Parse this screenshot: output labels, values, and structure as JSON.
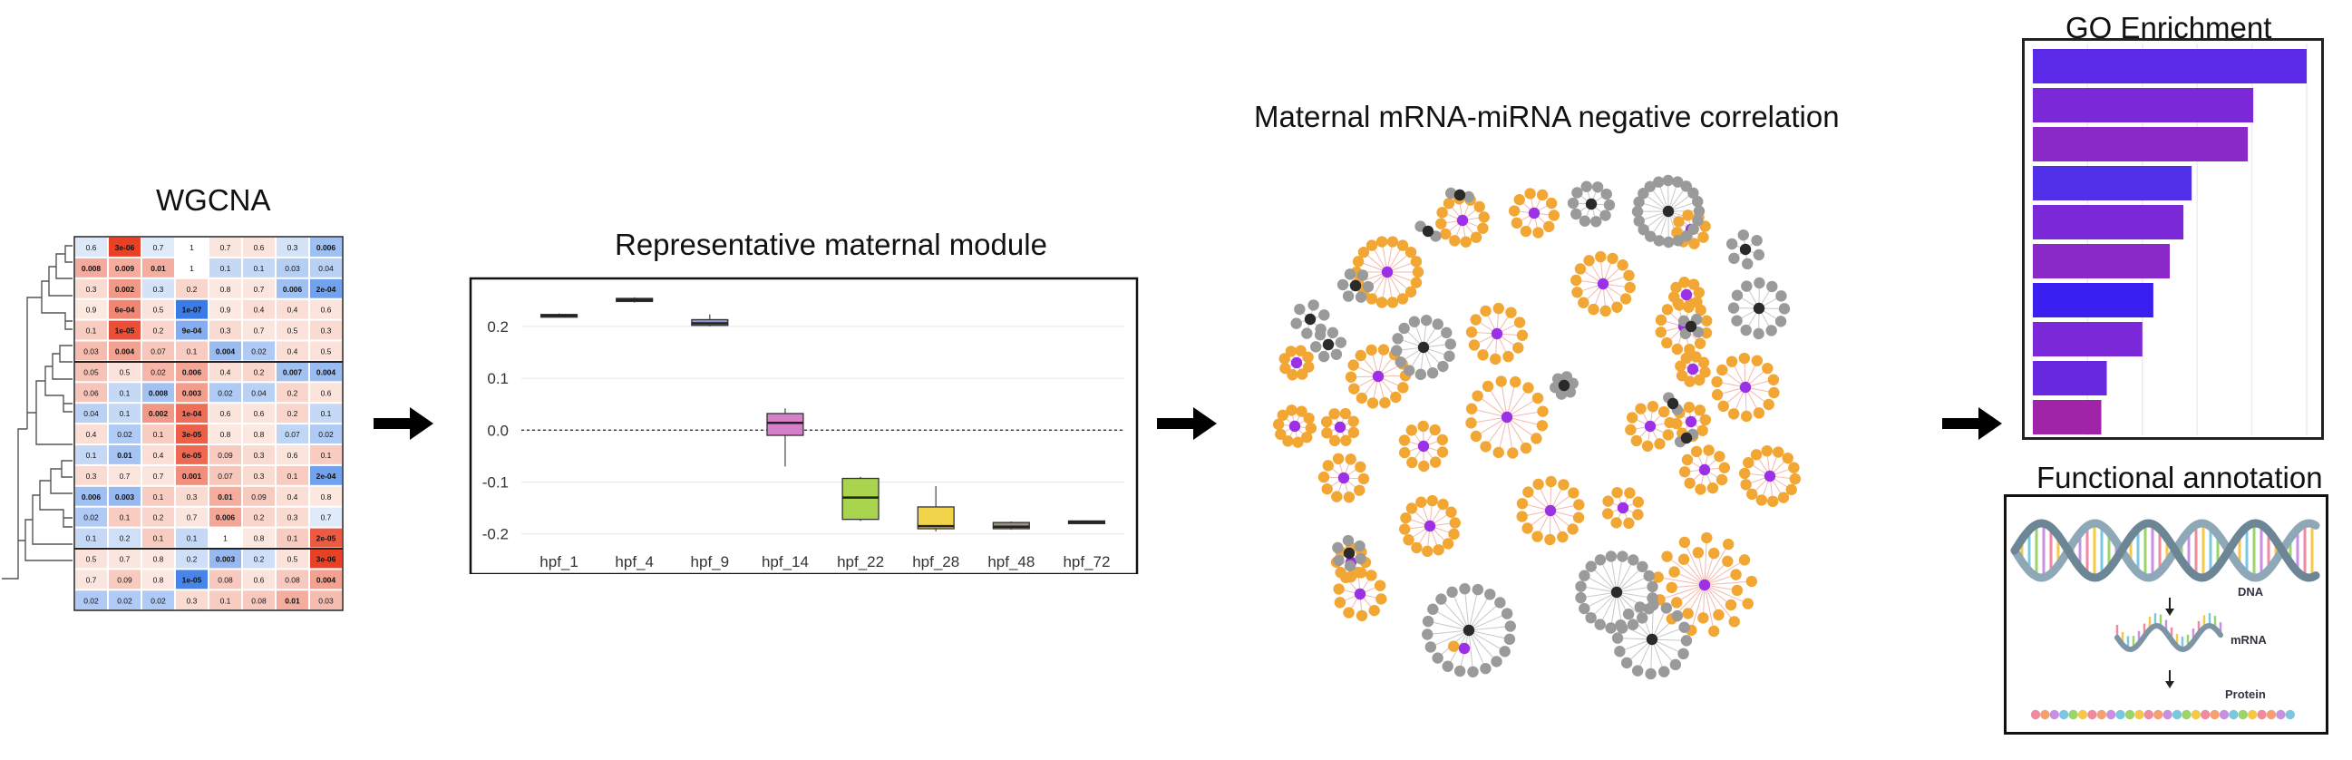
{
  "titles": {
    "wgcna": "WGCNA",
    "module": "Representative maternal module",
    "network": "Maternal mRNA-miRNA negative correlation",
    "go": "GO Enrichment",
    "functional": "Functional annotation"
  },
  "heatmap": {
    "cells": [
      [
        "0.6",
        "3e-06",
        "0.7",
        "1",
        "0.7",
        "0.6",
        "0.3",
        "0.006"
      ],
      [
        "0.008",
        "0.009",
        "0.01",
        "1",
        "0.1",
        "0.1",
        "0.03",
        "0.04"
      ],
      [
        "0.3",
        "0.002",
        "0.3",
        "0.2",
        "0.8",
        "0.7",
        "0.006",
        "2e-04"
      ],
      [
        "0.9",
        "6e-04",
        "0.5",
        "1e-07",
        "0.9",
        "0.4",
        "0.4",
        "0.6"
      ],
      [
        "0.1",
        "1e-05",
        "0.2",
        "9e-04",
        "0.3",
        "0.7",
        "0.5",
        "0.3"
      ],
      [
        "0.03",
        "0.004",
        "0.07",
        "0.1",
        "0.004",
        "0.02",
        "0.4",
        "0.5"
      ],
      [
        "0.05",
        "0.5",
        "0.02",
        "0.006",
        "0.4",
        "0.2",
        "0.007",
        "0.004"
      ],
      [
        "0.06",
        "0.1",
        "0.008",
        "0.003",
        "0.02",
        "0.04",
        "0.2",
        "0.6"
      ],
      [
        "0.04",
        "0.1",
        "0.002",
        "1e-04",
        "0.6",
        "0.6",
        "0.2",
        "0.1"
      ],
      [
        "0.4",
        "0.02",
        "0.1",
        "3e-05",
        "0.8",
        "0.8",
        "0.07",
        "0.02"
      ],
      [
        "0.1",
        "0.01",
        "0.4",
        "6e-05",
        "0.09",
        "0.3",
        "0.6",
        "0.1"
      ],
      [
        "0.3",
        "0.7",
        "0.7",
        "0.001",
        "0.07",
        "0.3",
        "0.1",
        "2e-04"
      ],
      [
        "0.006",
        "0.003",
        "0.1",
        "0.3",
        "0.01",
        "0.09",
        "0.4",
        "0.8"
      ],
      [
        "0.02",
        "0.1",
        "0.2",
        "0.7",
        "0.006",
        "0.2",
        "0.3",
        "0.7"
      ],
      [
        "0.1",
        "0.2",
        "0.1",
        "0.1",
        "1",
        "0.8",
        "0.1",
        "2e-05"
      ],
      [
        "0.5",
        "0.7",
        "0.8",
        "0.2",
        "0.003",
        "0.2",
        "0.5",
        "3e-06"
      ],
      [
        "0.7",
        "0.09",
        "0.8",
        "1e-05",
        "0.08",
        "0.6",
        "0.08",
        "0.004"
      ],
      [
        "0.02",
        "0.02",
        "0.02",
        "0.3",
        "0.1",
        "0.08",
        "0.01",
        "0.03"
      ]
    ],
    "signs": [
      [
        -1,
        1,
        -1,
        0,
        1,
        1,
        -1,
        -1
      ],
      [
        1,
        1,
        1,
        0,
        -1,
        -1,
        -1,
        -1
      ],
      [
        1,
        1,
        -1,
        1,
        1,
        1,
        -1,
        -1
      ],
      [
        1,
        1,
        1,
        -1,
        1,
        1,
        1,
        1
      ],
      [
        1,
        1,
        1,
        -1,
        1,
        1,
        1,
        1
      ],
      [
        1,
        1,
        1,
        1,
        -1,
        -1,
        1,
        1
      ],
      [
        1,
        1,
        1,
        1,
        1,
        1,
        -1,
        -1
      ],
      [
        1,
        -1,
        -1,
        1,
        -1,
        -1,
        1,
        1
      ],
      [
        -1,
        -1,
        1,
        1,
        1,
        1,
        1,
        -1
      ],
      [
        1,
        -1,
        1,
        1,
        1,
        1,
        -1,
        -1
      ],
      [
        -1,
        -1,
        1,
        1,
        1,
        1,
        1,
        1
      ],
      [
        1,
        1,
        1,
        1,
        1,
        1,
        1,
        -1
      ],
      [
        -1,
        -1,
        1,
        1,
        1,
        1,
        1,
        1
      ],
      [
        -1,
        1,
        1,
        1,
        1,
        1,
        1,
        -1
      ],
      [
        -1,
        -1,
        1,
        -1,
        0,
        1,
        1,
        1
      ],
      [
        1,
        1,
        1,
        -1,
        -1,
        -1,
        1,
        1
      ],
      [
        1,
        1,
        1,
        -1,
        1,
        1,
        1,
        1
      ],
      [
        -1,
        -1,
        -1,
        1,
        1,
        1,
        1,
        1
      ]
    ]
  },
  "chart_data": {
    "type": "box",
    "categories": [
      "hpf_1",
      "hpf_4",
      "hpf_9",
      "hpf_14",
      "hpf_22",
      "hpf_28",
      "hpf_48",
      "hpf_72"
    ],
    "boxes": [
      {
        "min": 0.218,
        "q1": 0.219,
        "median": 0.221,
        "q3": 0.223,
        "max": 0.225,
        "color": "#4a4a4a"
      },
      {
        "min": 0.246,
        "q1": 0.248,
        "median": 0.251,
        "q3": 0.254,
        "max": 0.256,
        "color": "#c98a5a"
      },
      {
        "min": 0.2,
        "q1": 0.202,
        "median": 0.206,
        "q3": 0.213,
        "max": 0.223,
        "color": "#8a9ad0"
      },
      {
        "min": -0.07,
        "q1": -0.01,
        "median": 0.014,
        "q3": 0.032,
        "max": 0.042,
        "color": "#d580c8"
      },
      {
        "min": -0.175,
        "q1": -0.172,
        "median": -0.13,
        "q3": -0.093,
        "max": -0.09,
        "color": "#a8d44e"
      },
      {
        "min": -0.195,
        "q1": -0.19,
        "median": -0.185,
        "q3": -0.148,
        "max": -0.108,
        "color": "#f1d44a"
      },
      {
        "min": -0.192,
        "q1": -0.19,
        "median": -0.186,
        "q3": -0.178,
        "max": -0.176,
        "color": "#9c9180"
      },
      {
        "min": -0.18,
        "q1": -0.179,
        "median": -0.177,
        "q3": -0.175,
        "max": -0.174,
        "color": "#444444"
      }
    ],
    "yticks": [
      "0.2",
      "0.1",
      "0.0",
      "-0.1",
      "-0.2"
    ],
    "ylim": [
      -0.225,
      0.275
    ],
    "reference_line": 0.0,
    "title": "Representative maternal module",
    "xlabel": "",
    "ylabel": ""
  },
  "go_chart": {
    "values": [
      1.0,
      0.805,
      0.785,
      0.58,
      0.55,
      0.5,
      0.44,
      0.4,
      0.27,
      0.25
    ],
    "colors": [
      "#5a2ae8",
      "#7a28d8",
      "#8a28c8",
      "#5030e8",
      "#7a28d8",
      "#8a28c8",
      "#3a20f0",
      "#7a28d8",
      "#6828e0",
      "#a024a8"
    ]
  },
  "annotation": {
    "dna": "DNA",
    "mrna": "mRNA",
    "protein": "Protein"
  },
  "network": {
    "colors": {
      "mrna": "#f2a633",
      "mirna": "#9b30e6",
      "other_hub": "#2a2a2a",
      "other_leaf": "#9a9a9a",
      "edge": "#f3b9b0"
    }
  }
}
